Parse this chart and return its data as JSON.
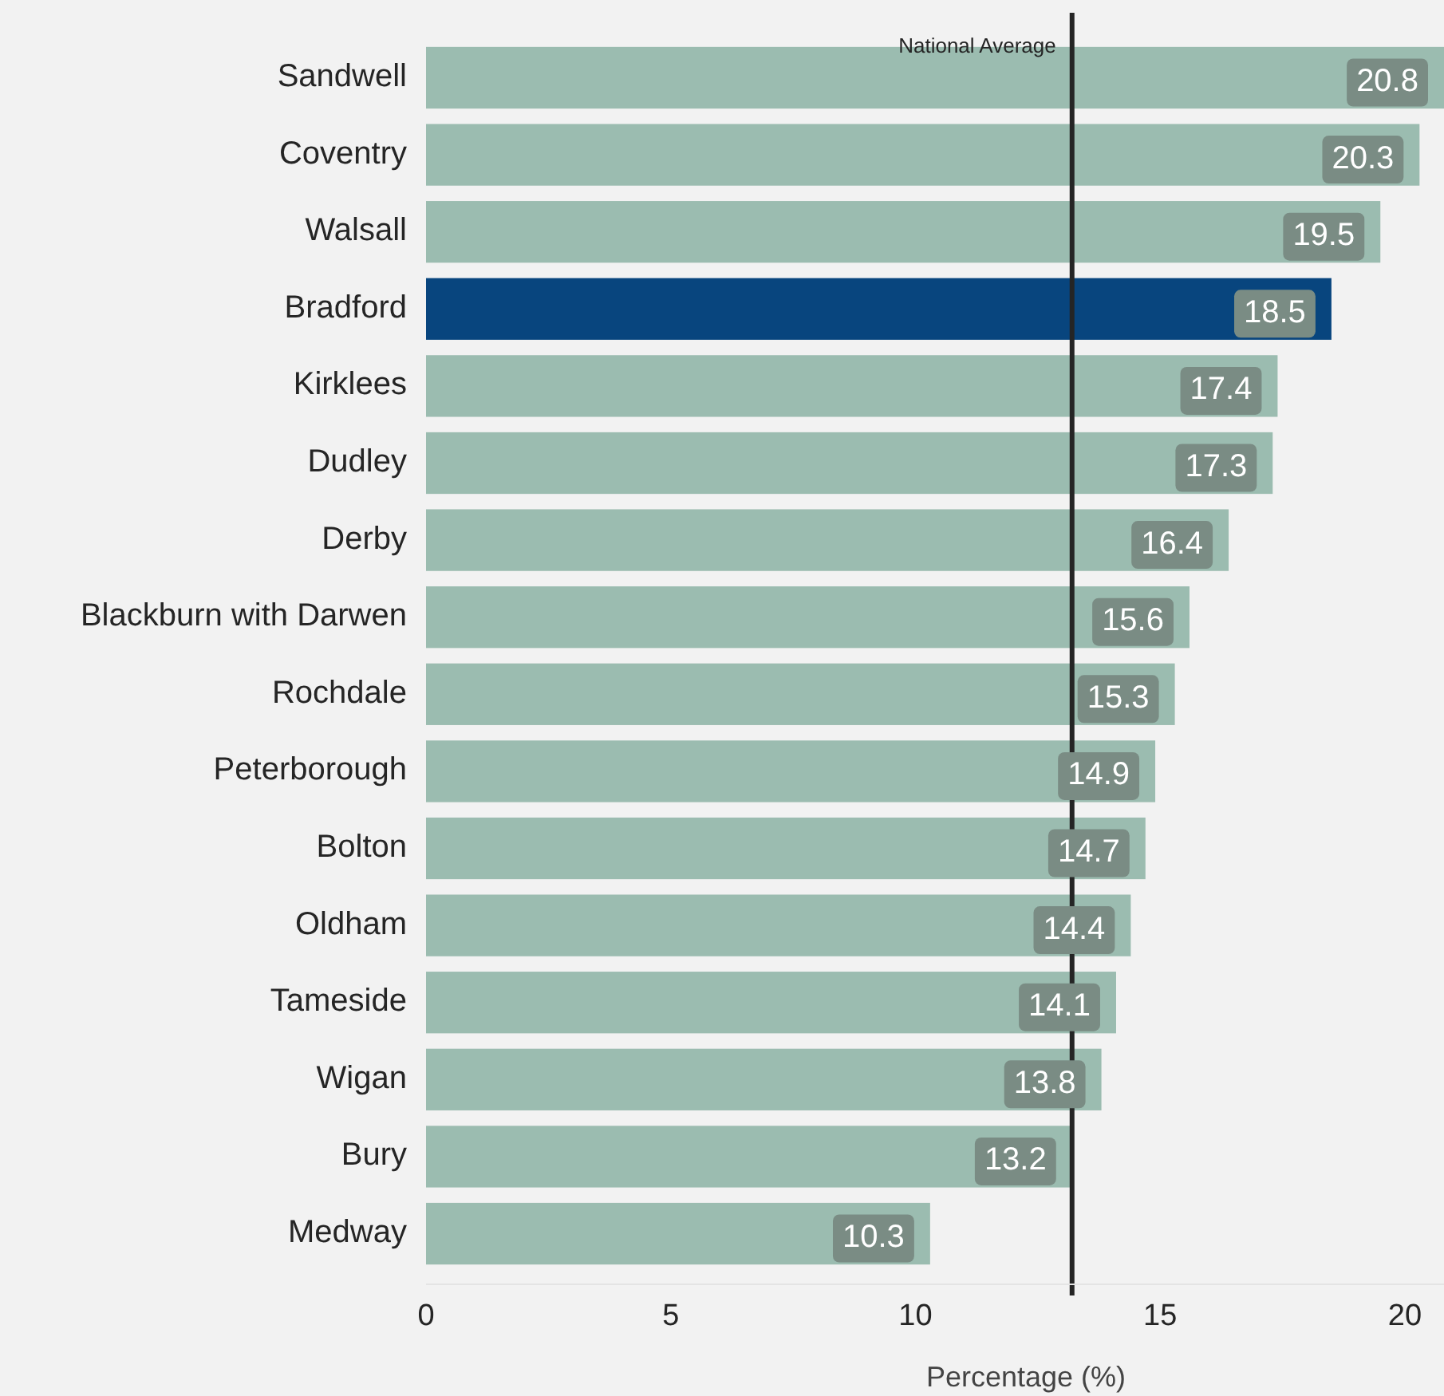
{
  "chart_data": {
    "type": "bar",
    "orientation": "horizontal",
    "xlabel": "Percentage (%)",
    "categories": [
      "Sandwell",
      "Coventry",
      "Walsall",
      "Bradford",
      "Kirklees",
      "Dudley",
      "Derby",
      "Blackburn with Darwen",
      "Rochdale",
      "Peterborough",
      "Bolton",
      "Oldham",
      "Tameside",
      "Wigan",
      "Bury",
      "Medway"
    ],
    "values": [
      20.8,
      20.3,
      19.5,
      18.5,
      17.4,
      17.3,
      16.4,
      15.6,
      15.3,
      14.9,
      14.7,
      14.4,
      14.1,
      13.8,
      13.2,
      10.3
    ],
    "colors": [
      "#9bbcb0",
      "#9bbcb0",
      "#9bbcb0",
      "#08457e",
      "#9bbcb0",
      "#9bbcb0",
      "#9bbcb0",
      "#9bbcb0",
      "#9bbcb0",
      "#9bbcb0",
      "#9bbcb0",
      "#9bbcb0",
      "#9bbcb0",
      "#9bbcb0",
      "#9bbcb0",
      "#9bbcb0"
    ],
    "xlim": [
      0,
      20.8
    ],
    "xticks": [
      0,
      5,
      10,
      15,
      20
    ],
    "data_labels": true,
    "grid": false,
    "ref_lines": [
      {
        "axis": "x",
        "value": 13.2,
        "label": "National Average",
        "color": "#252525"
      }
    ]
  }
}
